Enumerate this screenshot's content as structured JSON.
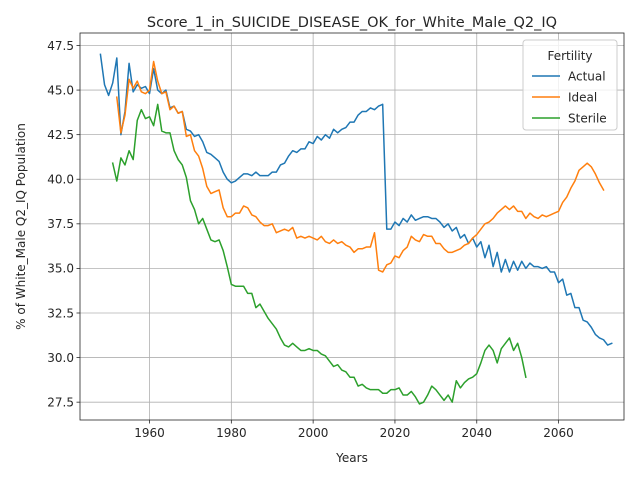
{
  "chart_data": {
    "type": "line",
    "title": "Score_1_in_SUICIDE_DISEASE_OK_for_White_Male_Q2_IQ",
    "xlabel": "Years",
    "ylabel": "% of White_Male Q2_IQ Population",
    "xlim": [
      1943,
      2076
    ],
    "ylim": [
      26.5,
      48.2
    ],
    "xticks": [
      1960,
      1980,
      2000,
      2020,
      2040,
      2060
    ],
    "yticks": [
      27.5,
      30.0,
      32.5,
      35.0,
      37.5,
      40.0,
      42.5,
      45.0,
      47.5
    ],
    "ytick_labels": [
      "27.5",
      "30.0",
      "32.5",
      "35.0",
      "37.5",
      "40.0",
      "42.5",
      "45.0",
      "47.5"
    ],
    "grid": true,
    "legend": {
      "title": "Fertility",
      "position": "top-right"
    },
    "series": [
      {
        "name": "Actual",
        "color": "#1f77b4",
        "x_start": 1948,
        "values": [
          47.0,
          45.3,
          44.7,
          45.4,
          46.8,
          42.5,
          43.8,
          46.5,
          44.9,
          45.3,
          45.1,
          45.2,
          44.8,
          46.2,
          45.0,
          44.8,
          45.0,
          44.0,
          44.1,
          43.7,
          43.8,
          42.8,
          42.7,
          42.4,
          42.5,
          42.1,
          41.5,
          41.4,
          41.2,
          41.0,
          40.4,
          40.0,
          39.8,
          39.9,
          40.1,
          40.3,
          40.3,
          40.2,
          40.4,
          40.2,
          40.2,
          40.2,
          40.4,
          40.4,
          40.8,
          40.9,
          41.3,
          41.6,
          41.5,
          41.7,
          41.7,
          42.1,
          42.0,
          42.4,
          42.2,
          42.5,
          42.3,
          42.8,
          42.6,
          42.8,
          42.9,
          43.2,
          43.2,
          43.6,
          43.8,
          43.8,
          44.0,
          43.9,
          44.1,
          44.2,
          37.2,
          37.2,
          37.6,
          37.4,
          37.8,
          37.6,
          38.0,
          37.7,
          37.8,
          37.9,
          37.9,
          37.8,
          37.8,
          37.6,
          37.3,
          37.5,
          37.1,
          37.3,
          36.7,
          36.9,
          36.4,
          36.7,
          36.2,
          36.5,
          35.6,
          36.3,
          35.1,
          35.9,
          34.8,
          35.5,
          34.8,
          35.4,
          34.9,
          35.4,
          35.0,
          35.3,
          35.1,
          35.1,
          35.0,
          35.1,
          34.8,
          34.8,
          34.2,
          34.4,
          33.5,
          33.6,
          32.8,
          32.8,
          32.1,
          32.0,
          31.7,
          31.3,
          31.1,
          31.0,
          30.7,
          30.8
        ]
      },
      {
        "name": "Ideal",
        "color": "#ff7f0e",
        "x_start": 1952,
        "values": [
          44.6,
          42.6,
          43.6,
          45.6,
          45.1,
          45.5,
          44.9,
          44.8,
          45.0,
          46.6,
          45.5,
          44.8,
          44.9,
          43.9,
          44.1,
          43.7,
          43.8,
          42.4,
          42.5,
          41.6,
          41.3,
          40.6,
          39.6,
          39.2,
          39.3,
          39.4,
          38.4,
          37.9,
          37.9,
          38.1,
          38.1,
          38.5,
          38.4,
          38.0,
          37.9,
          37.6,
          37.4,
          37.4,
          37.5,
          37.0,
          37.1,
          37.2,
          37.1,
          37.3,
          36.7,
          36.8,
          36.7,
          36.8,
          36.7,
          36.6,
          36.8,
          36.5,
          36.4,
          36.6,
          36.4,
          36.5,
          36.3,
          36.2,
          35.9,
          36.1,
          36.1,
          36.2,
          36.2,
          37.0,
          34.9,
          34.8,
          35.2,
          35.3,
          35.7,
          35.6,
          36.0,
          36.2,
          36.8,
          36.6,
          36.5,
          36.9,
          36.8,
          36.8,
          36.4,
          36.4,
          36.1,
          35.9,
          35.9,
          36.0,
          36.1,
          36.3,
          36.4,
          36.7,
          36.9,
          37.2,
          37.5,
          37.6,
          37.8,
          38.1,
          38.3,
          38.5,
          38.3,
          38.5,
          38.2,
          38.2,
          37.8,
          38.1,
          37.9,
          37.8,
          38.0,
          37.9,
          38.0,
          38.1,
          38.2,
          38.7,
          39.0,
          39.5,
          39.9,
          40.5,
          40.7,
          40.9,
          40.7,
          40.3,
          39.8,
          39.4
        ]
      },
      {
        "name": "Sterile",
        "color": "#2ca02c",
        "x_start": 1951,
        "values": [
          40.9,
          39.9,
          41.2,
          40.8,
          41.6,
          41.1,
          43.3,
          43.9,
          43.4,
          43.5,
          43.0,
          44.2,
          42.7,
          42.6,
          42.6,
          41.6,
          41.1,
          40.8,
          40.1,
          38.8,
          38.3,
          37.5,
          37.8,
          37.2,
          36.6,
          36.5,
          36.6,
          36.0,
          35.1,
          34.1,
          34.0,
          34.0,
          34.0,
          33.6,
          33.6,
          32.8,
          33.0,
          32.6,
          32.2,
          31.9,
          31.6,
          31.1,
          30.7,
          30.6,
          30.8,
          30.6,
          30.4,
          30.4,
          30.5,
          30.4,
          30.4,
          30.2,
          30.1,
          29.8,
          29.5,
          29.6,
          29.3,
          29.2,
          28.9,
          28.9,
          28.4,
          28.5,
          28.3,
          28.2,
          28.2,
          28.2,
          28.0,
          28.0,
          28.2,
          28.2,
          28.3,
          27.9,
          27.9,
          28.1,
          27.8,
          27.4,
          27.5,
          27.9,
          28.4,
          28.2,
          27.9,
          27.6,
          27.9,
          27.5,
          28.7,
          28.3,
          28.6,
          28.8,
          28.9,
          29.1,
          29.7,
          30.4,
          30.7,
          30.4,
          29.7,
          30.5,
          30.8,
          31.1,
          30.4,
          30.8,
          30.0,
          28.9
        ]
      }
    ]
  }
}
